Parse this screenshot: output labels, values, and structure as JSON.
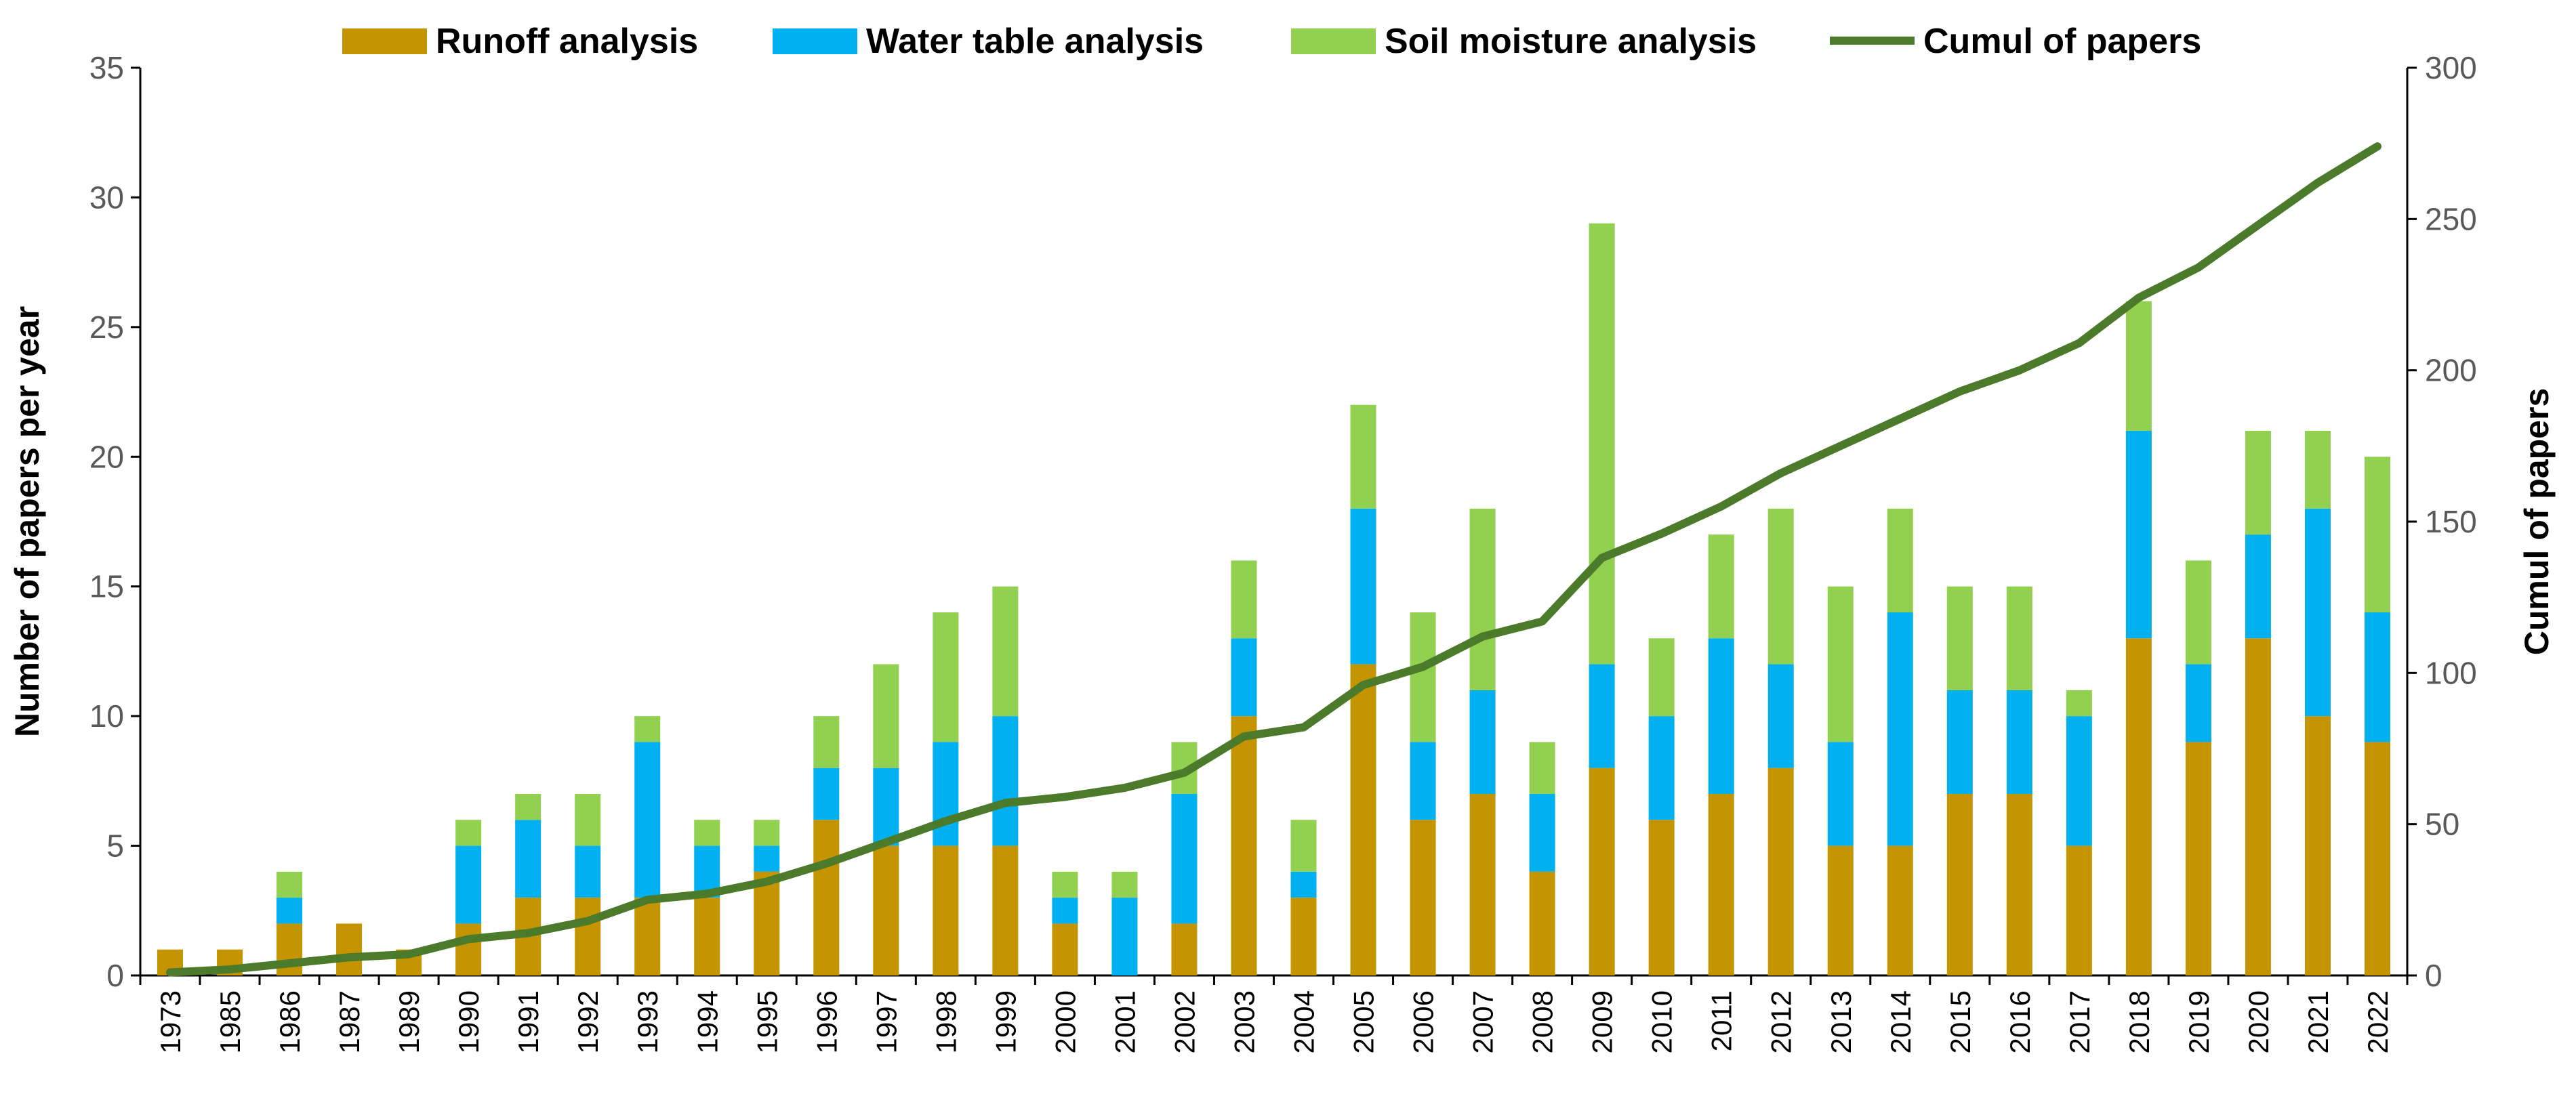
{
  "chart_data": {
    "type": "bar",
    "stacked": true,
    "categories": [
      "1973",
      "1985",
      "1986",
      "1987",
      "1989",
      "1990",
      "1991",
      "1992",
      "1993",
      "1994",
      "1995",
      "1996",
      "1997",
      "1998",
      "1999",
      "2000",
      "2001",
      "2002",
      "2003",
      "2004",
      "2005",
      "2006",
      "2007",
      "2008",
      "2009",
      "2010",
      "2011",
      "2012",
      "2013",
      "2014",
      "2015",
      "2016",
      "2017",
      "2018",
      "2019",
      "2020",
      "2021",
      "2022"
    ],
    "series": [
      {
        "name": "Runoff analysis",
        "color": "#C49500",
        "axis": "left",
        "values": [
          1,
          1,
          2,
          2,
          1,
          2,
          3,
          3,
          3,
          3,
          4,
          6,
          5,
          5,
          5,
          2,
          0,
          2,
          10,
          3,
          12,
          6,
          7,
          4,
          8,
          6,
          7,
          8,
          5,
          5,
          7,
          7,
          5,
          13,
          9,
          13,
          10,
          9
        ]
      },
      {
        "name": "Water table analysis",
        "color": "#00B0F0",
        "axis": "left",
        "values": [
          0,
          0,
          1,
          0,
          0,
          3,
          3,
          2,
          6,
          2,
          1,
          2,
          3,
          4,
          5,
          1,
          3,
          5,
          3,
          1,
          6,
          3,
          4,
          3,
          4,
          4,
          6,
          4,
          4,
          9,
          4,
          4,
          5,
          8,
          3,
          4,
          8,
          5
        ]
      },
      {
        "name": "Soil moisture analysis",
        "color": "#92D050",
        "axis": "left",
        "values": [
          0,
          0,
          1,
          0,
          0,
          1,
          1,
          2,
          1,
          1,
          1,
          2,
          4,
          5,
          5,
          1,
          1,
          2,
          3,
          2,
          4,
          5,
          7,
          2,
          17,
          3,
          4,
          6,
          6,
          4,
          4,
          4,
          1,
          5,
          4,
          4,
          3,
          6
        ]
      },
      {
        "name": "Cumul of papers",
        "type": "line",
        "color": "#4A7A2A",
        "axis": "right",
        "values": [
          1,
          2,
          4,
          6,
          7,
          12,
          14,
          18,
          25,
          27,
          31,
          37,
          44,
          51,
          57,
          59,
          62,
          67,
          79,
          82,
          96,
          102,
          112,
          117,
          138,
          146,
          155,
          166,
          175,
          184,
          193,
          200,
          209,
          224,
          234,
          248,
          262,
          274
        ]
      }
    ],
    "title": "",
    "xlabel": "",
    "ylabel": "Number of papers per year",
    "y2label": "Cumul of papers",
    "ylim": [
      0,
      35
    ],
    "y2lim": [
      0,
      300
    ],
    "yticks": [
      "0",
      "5",
      "10",
      "15",
      "20",
      "25",
      "30",
      "35"
    ],
    "y2ticks": [
      "0",
      "50",
      "100",
      "150",
      "200",
      "250",
      "300"
    ],
    "legend_position": "top",
    "grid": false
  }
}
